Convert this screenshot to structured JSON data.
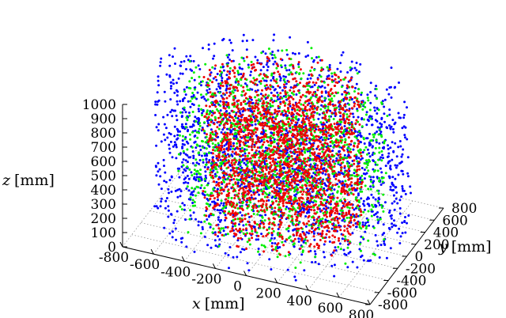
{
  "chart_data": {
    "type": "scatter",
    "projection": "3d",
    "xlabel_var": "x",
    "xlabel_unit": "[mm]",
    "ylabel_var": "y",
    "ylabel_unit": "[mm]",
    "zlabel_var": "z",
    "zlabel_unit": "[mm]",
    "xlim": [
      -800,
      800
    ],
    "ylim": [
      -800,
      800
    ],
    "zlim": [
      0,
      1000
    ],
    "x_ticks": [
      "-800",
      "-600",
      "-400",
      "-200",
      "0",
      "200",
      "400",
      "600",
      "800"
    ],
    "y_ticks": [
      "-800",
      "-600",
      "-400",
      "-200",
      "0",
      "200",
      "400",
      "600",
      "800"
    ],
    "z_ticks": [
      "0",
      "100",
      "200",
      "300",
      "400",
      "500",
      "600",
      "700",
      "800",
      "900",
      "1000"
    ],
    "grid": true,
    "legend": "none",
    "series": [
      {
        "color": "#0000ff",
        "distribution": "uniform cylinder",
        "radius": 800,
        "z_range": [
          0,
          1000
        ],
        "points": [
          [
            -400,
            560,
            910
          ],
          [
            520,
            -180,
            880
          ],
          [
            -650,
            -120,
            640
          ],
          [
            130,
            700,
            520
          ],
          [
            610,
            350,
            300
          ],
          [
            -270,
            -610,
            150
          ]
        ]
      },
      {
        "color": "#00ee00",
        "distribution": "uniform cylinder",
        "radius": 650,
        "z_range": [
          0,
          1000
        ],
        "points": [
          [
            -300,
            300,
            820
          ],
          [
            400,
            120,
            600
          ],
          [
            -500,
            -200,
            350
          ],
          [
            200,
            -450,
            120
          ],
          [
            60,
            560,
            760
          ]
        ]
      },
      {
        "color": "#ee0000",
        "distribution": "uniform cylinder",
        "radius": 500,
        "z_range": [
          0,
          1000
        ],
        "points": [
          [
            100,
            200,
            800
          ],
          [
            -250,
            -100,
            550
          ],
          [
            300,
            -300,
            300
          ],
          [
            -150,
            380,
            100
          ],
          [
            420,
            80,
            680
          ]
        ]
      }
    ]
  }
}
